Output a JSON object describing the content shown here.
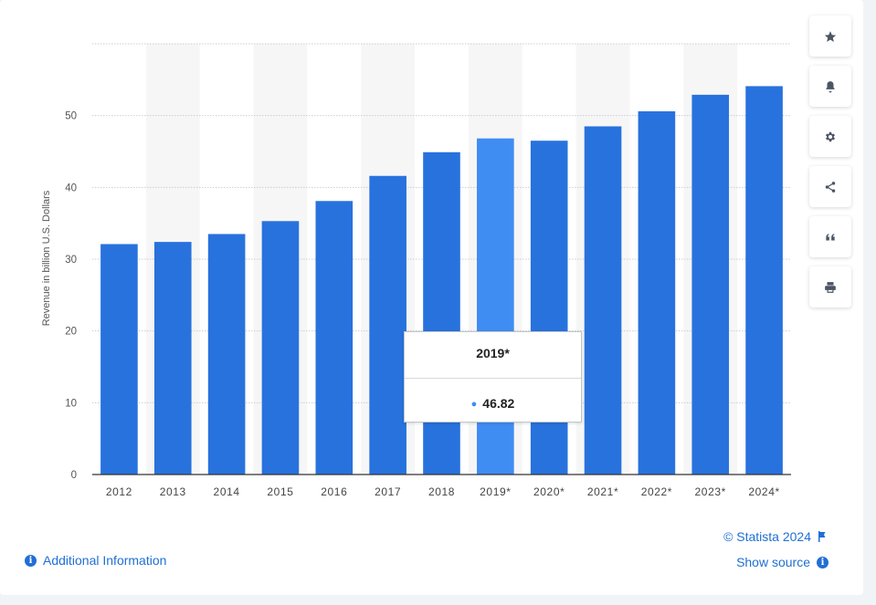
{
  "chart_data": {
    "type": "bar",
    "categories": [
      "2012",
      "2013",
      "2014",
      "2015",
      "2016",
      "2017",
      "2018",
      "2019*",
      "2020*",
      "2021*",
      "2022*",
      "2023*",
      "2024*"
    ],
    "values": [
      32.1,
      32.4,
      33.5,
      35.3,
      38.1,
      41.6,
      44.9,
      46.82,
      46.5,
      48.5,
      50.6,
      52.9,
      54.1
    ],
    "ylabel": "Revenue in billion U.S. Dollars",
    "ylim": [
      0,
      60
    ],
    "yticks": [
      0,
      10,
      20,
      30,
      40,
      50
    ],
    "highlighted_category": "2019*",
    "grid": true,
    "bar_color": "#2872dd",
    "highlight_color": "#3f8cf3"
  },
  "tooltip": {
    "title": "2019*",
    "value": "46.82"
  },
  "toolbar": {
    "buttons": [
      {
        "name": "favorite-button",
        "icon": "star-icon"
      },
      {
        "name": "notification-button",
        "icon": "bell-icon"
      },
      {
        "name": "settings-button",
        "icon": "gear-icon"
      },
      {
        "name": "share-button",
        "icon": "share-icon"
      },
      {
        "name": "cite-button",
        "icon": "quote-icon"
      },
      {
        "name": "print-button",
        "icon": "print-icon"
      }
    ]
  },
  "footer": {
    "additional_info": "Additional Information",
    "credit": "© Statista 2024",
    "show_source": "Show source"
  }
}
